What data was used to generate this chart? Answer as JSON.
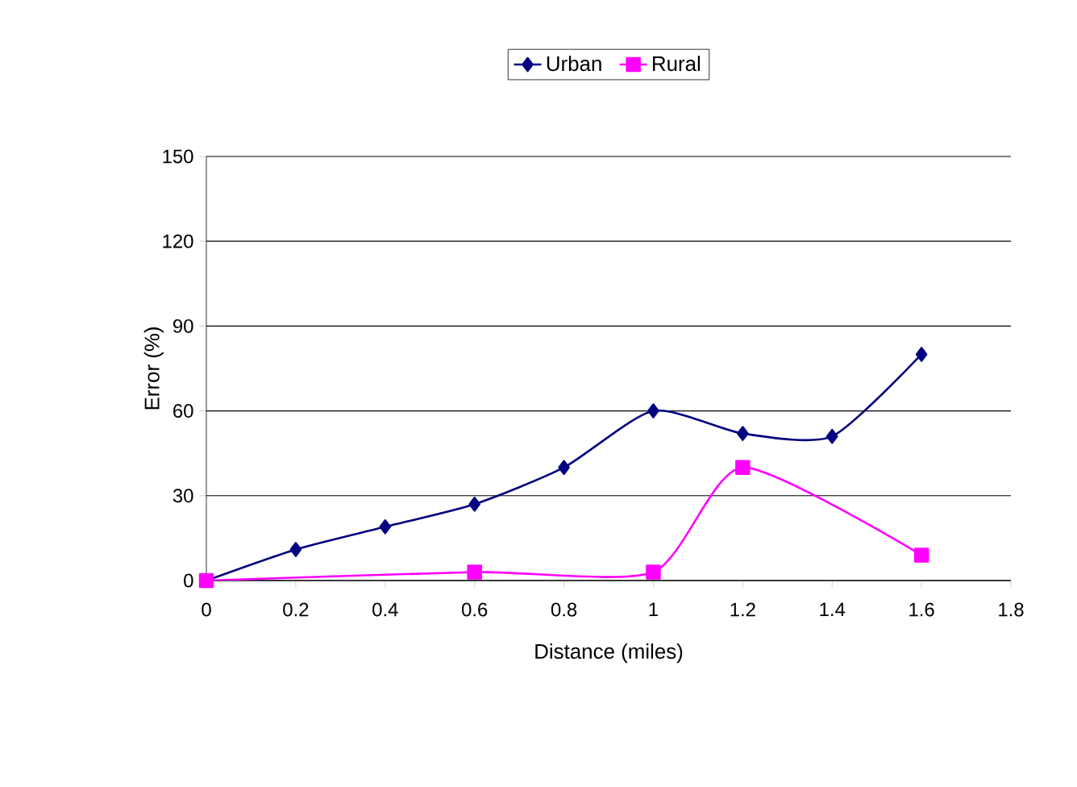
{
  "chart_data": {
    "type": "line",
    "xlabel": "Distance (miles)",
    "ylabel": "Error (%)",
    "xlim": [
      0,
      1.8
    ],
    "xticks": [
      0,
      0.2,
      0.4,
      0.6,
      0.8,
      1,
      1.2,
      1.4,
      1.6,
      1.8
    ],
    "ylim": [
      0,
      150
    ],
    "yticks": [
      0,
      30,
      60,
      90,
      120,
      150
    ],
    "grid": "y",
    "legend": "top",
    "line_style": "solid",
    "series": [
      {
        "name": "Urban",
        "color": "#000080",
        "marker": "diamond",
        "x": [
          0,
          0.2,
          0.4,
          0.6,
          0.8,
          1,
          1.2,
          1.4,
          1.6
        ],
        "values": [
          0,
          11,
          19,
          27,
          40,
          60,
          52,
          51,
          80
        ]
      },
      {
        "name": "Rural",
        "color": "#ff00ff",
        "marker": "square",
        "x": [
          0,
          0.6,
          1,
          1.2,
          1.6
        ],
        "values": [
          0,
          3,
          3,
          40,
          9
        ]
      }
    ]
  }
}
